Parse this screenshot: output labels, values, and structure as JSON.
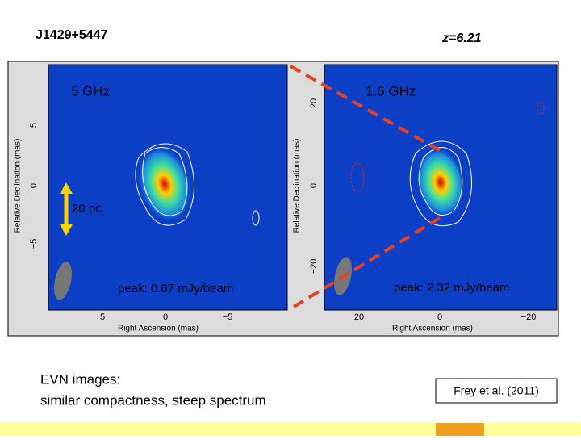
{
  "header": {
    "title": "J1429+5447",
    "redshift": "z=6.21"
  },
  "panels": [
    {
      "label": "5 GHz",
      "peak": "peak: 0.67 mJy/beam",
      "y_axis_label": "Relative Declination (mas)",
      "x_axis_label": "Right Ascension (mas)",
      "yticks": [
        "5",
        "0",
        "−5"
      ],
      "xticks": [
        "5",
        "0",
        "−5"
      ]
    },
    {
      "label": "1.6 GHz",
      "peak": "peak: 2.32 mJy/beam",
      "y_axis_label": "Relative Declination (mas)",
      "x_axis_label": "Right Ascension (mas)",
      "yticks": [
        "20",
        "0",
        "−20"
      ],
      "xticks": [
        "20",
        "0",
        "−20"
      ]
    }
  ],
  "scale_bar": "20 pc",
  "caption": [
    "EVN images:",
    "similar compactness, steep spectrum"
  ],
  "citation": "Frey et al. (2011)"
}
